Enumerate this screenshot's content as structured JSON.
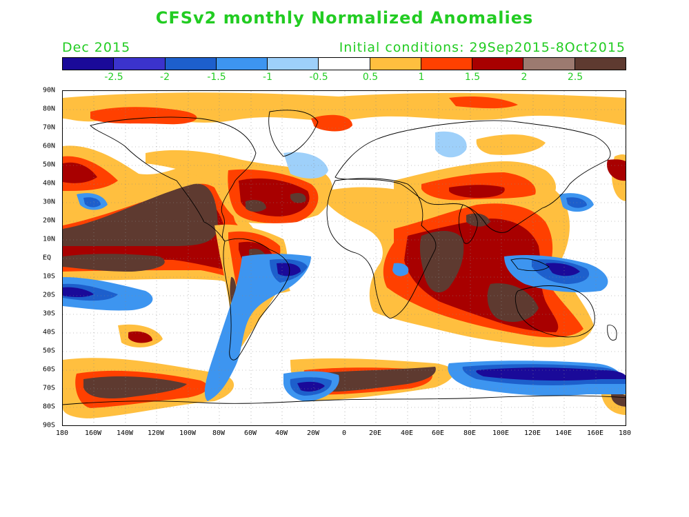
{
  "header": {
    "title": "CFSv2 monthly Normalized Anomalies",
    "month": "Dec 2015",
    "initial_conditions": "Initial conditions: 29Sep2015-8Oct2015"
  },
  "colorbar": {
    "colors": [
      "#1a0a99",
      "#3b33cc",
      "#1d5fcc",
      "#3d95f0",
      "#9ed0fa",
      "#ffffff",
      "#ffbf3f",
      "#ff4000",
      "#a80000",
      "#9c7a70",
      "#5e3a30"
    ],
    "labels": [
      "-2.5",
      "-2",
      "-1.5",
      "-1",
      "-0.5",
      "0.5",
      "1",
      "1.5",
      "2",
      "2.5"
    ]
  },
  "map": {
    "lat_labels": [
      "90N",
      "80N",
      "70N",
      "60N",
      "50N",
      "40N",
      "30N",
      "20N",
      "10N",
      "EQ",
      "10S",
      "20S",
      "30S",
      "40S",
      "50S",
      "60S",
      "70S",
      "80S",
      "90S"
    ],
    "lon_labels": [
      "180",
      "160W",
      "140W",
      "120W",
      "100W",
      "80W",
      "60W",
      "40W",
      "20W",
      "0",
      "20E",
      "40E",
      "60E",
      "80E",
      "100E",
      "120E",
      "140E",
      "160E",
      "180"
    ]
  }
}
